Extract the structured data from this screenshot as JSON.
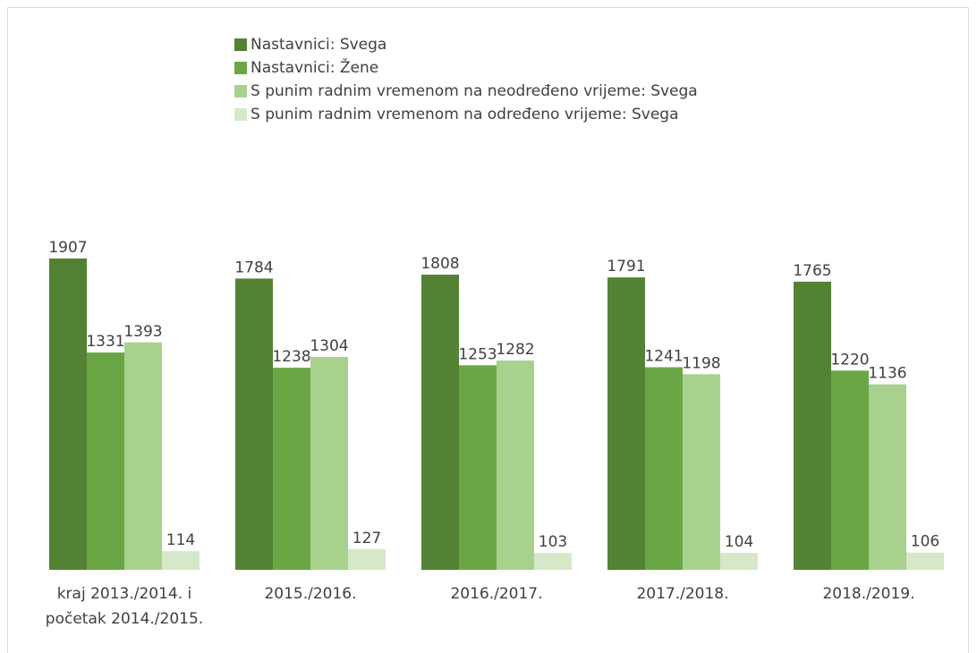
{
  "chart_data": {
    "type": "bar",
    "categories": [
      "kraj 2013./2014. i početak 2014./2015.",
      "2015./2016.",
      "2016./2017.",
      "2017./2018.",
      "2018./2019."
    ],
    "series": [
      {
        "name": "Nastavnici: Svega",
        "color": "#548235",
        "values": [
          1907,
          1784,
          1808,
          1791,
          1765
        ]
      },
      {
        "name": "Nastavnici: Žene",
        "color": "#6aa744",
        "values": [
          1331,
          1238,
          1253,
          1241,
          1220
        ]
      },
      {
        "name": "S punim radnim vremenom na neodređeno vrijeme: Svega",
        "color": "#a9d18e",
        "values": [
          1393,
          1304,
          1282,
          1198,
          1136
        ]
      },
      {
        "name": "S punim radnim vremenom na određeno vrijeme: Svega",
        "color": "#d5e8c8",
        "values": [
          114,
          127,
          103,
          104,
          106
        ]
      }
    ],
    "ylim": [
      0,
      2000
    ]
  }
}
